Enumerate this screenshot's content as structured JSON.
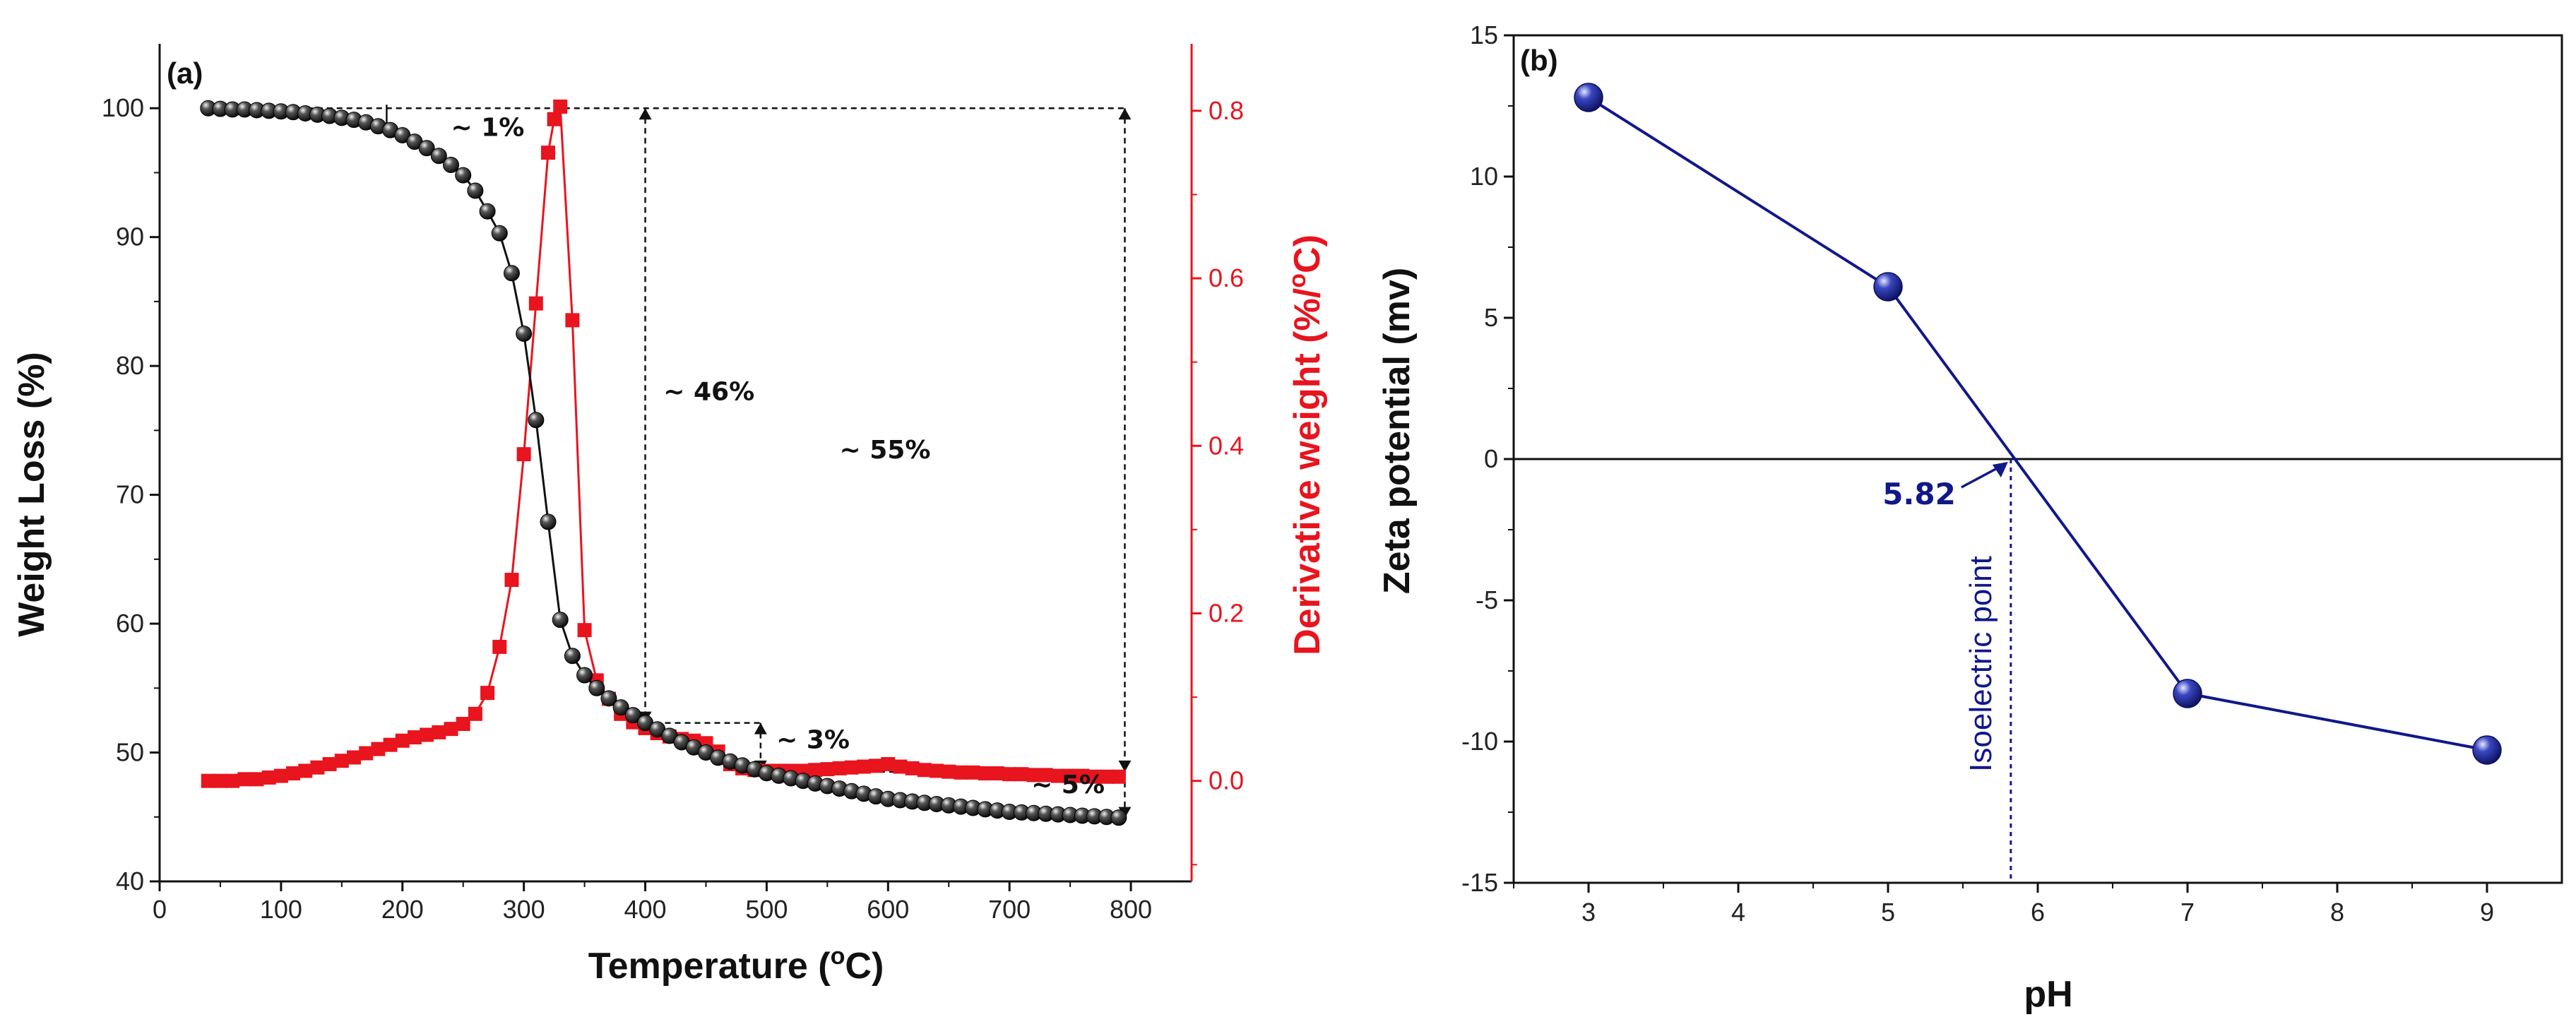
{
  "chart_data": [
    {
      "panel": "(a)",
      "type": "line",
      "xlabel_main": "Temperature (",
      "xlabel_sup": "o",
      "xlabel_end": "C)",
      "ylabel": "Weight Loss  (%)",
      "y2label": "Derivative weight (%/",
      "y2label_sup": "o",
      "y2label_end": "C)",
      "xlim": [
        0,
        850
      ],
      "ylim": [
        40,
        105
      ],
      "y2lim": [
        -0.12,
        0.88
      ],
      "xticks": [
        0,
        100,
        200,
        300,
        400,
        500,
        600,
        700,
        800
      ],
      "yticks": [
        40,
        50,
        60,
        70,
        80,
        90,
        100
      ],
      "y2ticks": [
        0.0,
        0.2,
        0.4,
        0.6,
        0.8
      ],
      "y2ticklabels": [
        "0.0",
        "0.2",
        "0.4",
        "0.6",
        "0.8"
      ],
      "colors": {
        "weight": "#111111",
        "derivative": "#e8141e"
      },
      "series": [
        {
          "name": "Weight loss",
          "axis": "left",
          "marker": "sphere",
          "x": [
            40,
            50,
            60,
            70,
            80,
            90,
            100,
            110,
            120,
            130,
            140,
            150,
            160,
            170,
            180,
            190,
            200,
            210,
            220,
            230,
            240,
            250,
            260,
            270,
            280,
            290,
            300,
            310,
            320,
            330,
            340,
            350,
            360,
            370,
            380,
            390,
            400,
            410,
            420,
            430,
            440,
            450,
            460,
            470,
            480,
            490,
            500,
            510,
            520,
            530,
            540,
            550,
            560,
            570,
            580,
            590,
            600,
            610,
            620,
            630,
            640,
            650,
            660,
            670,
            680,
            690,
            700,
            710,
            720,
            730,
            740,
            750,
            760,
            770,
            780,
            790
          ],
          "values": [
            100,
            99.95,
            99.9,
            99.9,
            99.85,
            99.8,
            99.75,
            99.7,
            99.6,
            99.5,
            99.4,
            99.25,
            99.1,
            98.9,
            98.6,
            98.3,
            97.9,
            97.4,
            96.9,
            96.3,
            95.6,
            94.8,
            93.6,
            92.0,
            90.3,
            87.2,
            82.5,
            75.8,
            67.9,
            60.3,
            57.5,
            56.0,
            55.0,
            54.2,
            53.5,
            52.9,
            52.3,
            51.8,
            51.3,
            50.8,
            50.4,
            50.0,
            49.6,
            49.3,
            49.0,
            48.7,
            48.4,
            48.2,
            48.0,
            47.8,
            47.6,
            47.4,
            47.2,
            47.0,
            46.8,
            46.6,
            46.4,
            46.3,
            46.2,
            46.1,
            46.0,
            45.9,
            45.8,
            45.7,
            45.6,
            45.5,
            45.4,
            45.35,
            45.3,
            45.25,
            45.2,
            45.15,
            45.1,
            45.05,
            45.0,
            44.95
          ]
        },
        {
          "name": "Derivative weight",
          "axis": "right",
          "marker": "square",
          "x": [
            40,
            50,
            60,
            70,
            80,
            90,
            100,
            110,
            120,
            130,
            140,
            150,
            160,
            170,
            180,
            190,
            200,
            210,
            220,
            230,
            240,
            250,
            260,
            270,
            280,
            290,
            300,
            310,
            320,
            325,
            330,
            340,
            350,
            360,
            370,
            380,
            390,
            400,
            410,
            420,
            430,
            440,
            450,
            460,
            470,
            480,
            490,
            500,
            510,
            520,
            530,
            540,
            550,
            560,
            570,
            580,
            590,
            600,
            610,
            620,
            630,
            640,
            650,
            660,
            670,
            680,
            690,
            700,
            710,
            720,
            730,
            740,
            750,
            760,
            770,
            780,
            790
          ],
          "values": [
            0.0,
            0.0,
            0.0,
            0.002,
            0.002,
            0.004,
            0.006,
            0.009,
            0.012,
            0.016,
            0.02,
            0.024,
            0.028,
            0.033,
            0.038,
            0.043,
            0.048,
            0.052,
            0.055,
            0.058,
            0.062,
            0.068,
            0.08,
            0.105,
            0.16,
            0.24,
            0.39,
            0.57,
            0.75,
            0.79,
            0.805,
            0.55,
            0.18,
            0.12,
            0.098,
            0.08,
            0.07,
            0.063,
            0.057,
            0.053,
            0.05,
            0.048,
            0.045,
            0.035,
            0.02,
            0.015,
            0.013,
            0.012,
            0.012,
            0.012,
            0.012,
            0.013,
            0.014,
            0.015,
            0.016,
            0.017,
            0.018,
            0.02,
            0.017,
            0.015,
            0.013,
            0.012,
            0.011,
            0.01,
            0.01,
            0.009,
            0.009,
            0.008,
            0.008,
            0.007,
            0.007,
            0.006,
            0.006,
            0.006,
            0.005,
            0.005,
            0.005
          ]
        }
      ],
      "annotations": [
        {
          "label": "~ 1%",
          "x": 240,
          "y": 98.5
        },
        {
          "label": "~ 46%",
          "x": 415,
          "y": 78
        },
        {
          "label": "~ 3%",
          "x": 508,
          "y": 51
        },
        {
          "label": "~ 55%",
          "x": 560,
          "y": 73.5
        },
        {
          "label": "~ 5%",
          "x": 718,
          "y": 47.5
        }
      ]
    },
    {
      "panel": "(b)",
      "type": "line",
      "xlabel": "pH",
      "ylabel": "Zeta potential (mv)",
      "xlim": [
        2.5,
        9.5
      ],
      "ylim": [
        -15,
        15
      ],
      "xticks": [
        3,
        4,
        5,
        6,
        7,
        8,
        9
      ],
      "yticks": [
        -15,
        -10,
        -5,
        0,
        5,
        10,
        15
      ],
      "colors": {
        "line": "#11188a",
        "marker": "#1c2a9c"
      },
      "series": [
        {
          "name": "Zeta potential",
          "x": [
            3,
            5,
            7,
            9
          ],
          "values": [
            12.8,
            6.1,
            -8.3,
            -10.3
          ]
        }
      ],
      "isoelectric_point": {
        "x": 5.82,
        "label": "5.82",
        "text": "Isoelectric point"
      }
    }
  ]
}
